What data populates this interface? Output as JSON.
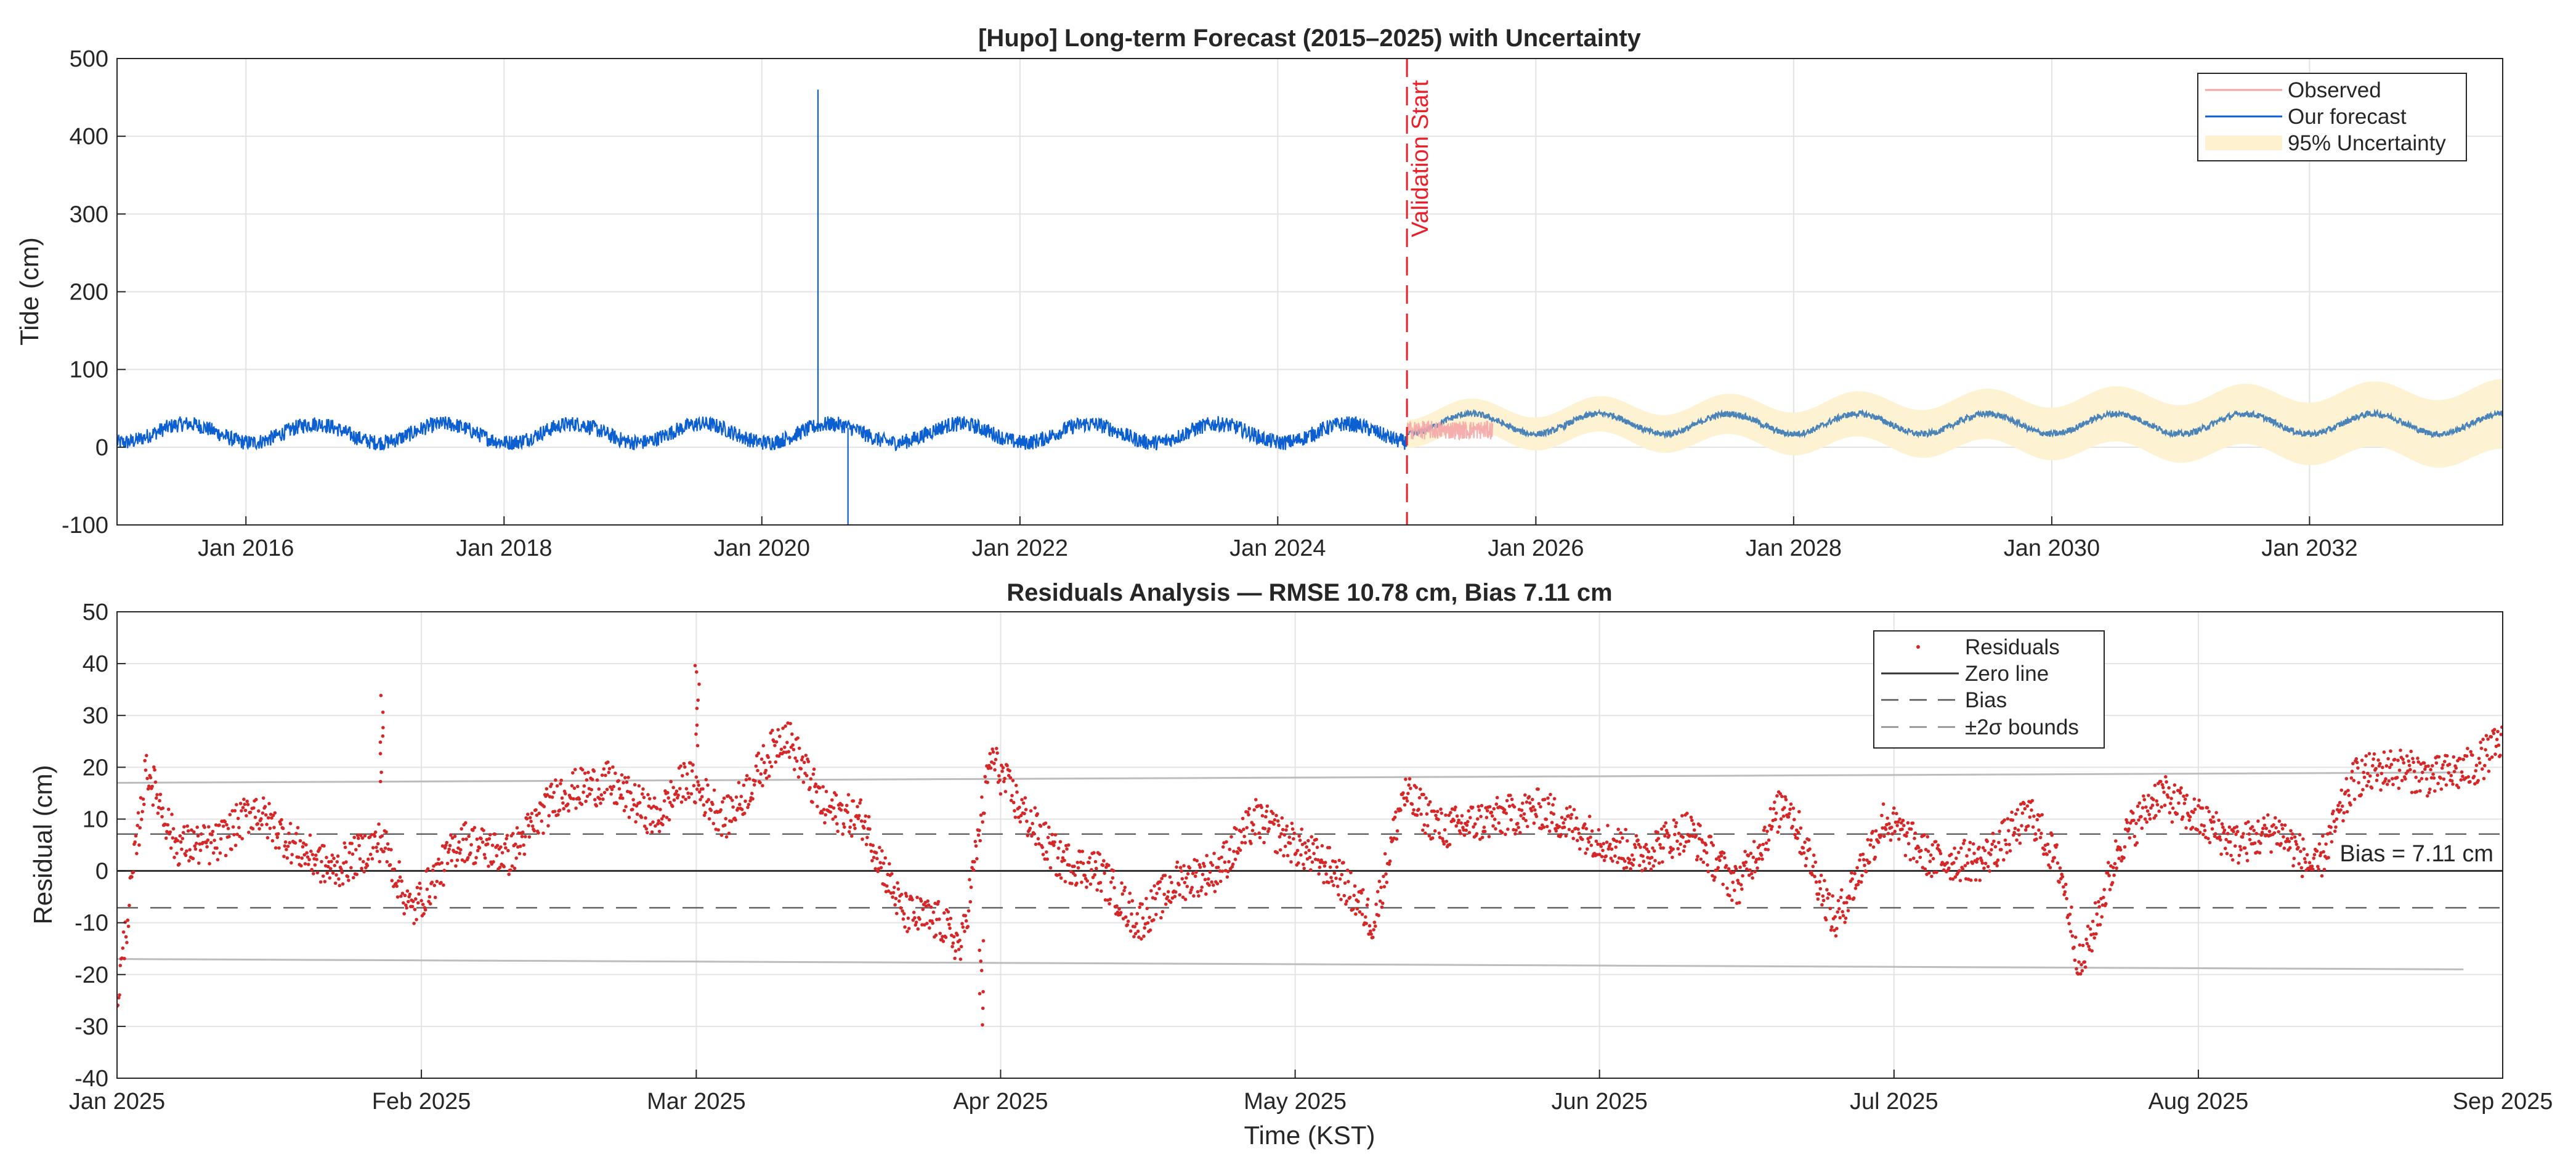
{
  "chart_data": [
    {
      "type": "line",
      "title": "[Hupo] Long-term Forecast (2015–2025) with Uncertainty",
      "xlabel": "",
      "ylabel": "Tide (cm)",
      "xlim": [
        "2015-01-01",
        "2033-07-01"
      ],
      "ylim": [
        -100,
        500
      ],
      "yticks": [
        -100,
        0,
        100,
        200,
        300,
        400,
        500
      ],
      "xticks": [
        {
          "date": "2016-01-01",
          "label": "Jan 2016"
        },
        {
          "date": "2018-01-01",
          "label": "Jan 2018"
        },
        {
          "date": "2020-01-01",
          "label": "Jan 2020"
        },
        {
          "date": "2022-01-01",
          "label": "Jan 2022"
        },
        {
          "date": "2024-01-01",
          "label": "Jan 2024"
        },
        {
          "date": "2026-01-01",
          "label": "Jan 2026"
        },
        {
          "date": "2028-01-01",
          "label": "Jan 2028"
        },
        {
          "date": "2030-01-01",
          "label": "Jan 2030"
        },
        {
          "date": "2032-01-01",
          "label": "Jan 2032"
        }
      ],
      "grid": true,
      "legend": {
        "location": "top-right",
        "entries": [
          "Observed",
          "Our forecast",
          "95% Uncertainty"
        ]
      },
      "series": [
        {
          "name": "Our forecast",
          "color": "#0b5fd0",
          "kind": "history",
          "x_range": [
            "2015-01-01",
            "2025-01-01"
          ],
          "mean": 18,
          "seasonal_amplitude": 12,
          "noise_amplitude": 10,
          "spikes": [
            {
              "date": "2020-06-08",
              "value": 460
            },
            {
              "date": "2020-09-01",
              "value": -100
            }
          ]
        },
        {
          "name": "Our forecast",
          "color": "#4a83b8",
          "kind": "forecast",
          "x_range": [
            "2025-01-01",
            "2033-07-01"
          ],
          "mean": 30,
          "seasonal_amplitude": 13,
          "period_years": 1
        },
        {
          "name": "Observed",
          "color": "#f4a6a6",
          "x_range": [
            "2025-01-01",
            "2025-09-01"
          ],
          "mean": 22,
          "noise_amplitude": 12
        },
        {
          "name": "95% Uncertainty",
          "color": "#fdf1cf",
          "kind": "band",
          "x_range": [
            "2025-01-01",
            "2033-07-01"
          ],
          "half_width_start": 18,
          "half_width_end": 45
        }
      ],
      "annotations": [
        {
          "type": "vline",
          "date": "2025-01-01",
          "label": "Validation Start",
          "color": "#e8202a"
        }
      ]
    },
    {
      "type": "scatter",
      "title": "Residuals Analysis — RMSE 10.78 cm, Bias 7.11 cm",
      "xlabel": "Time (KST)",
      "ylabel": "Residual (cm)",
      "xlim": [
        "2025-01-01",
        "2025-09-01"
      ],
      "ylim": [
        -40,
        50
      ],
      "yticks": [
        -40,
        -30,
        -20,
        -10,
        0,
        10,
        20,
        30,
        40,
        50
      ],
      "xticks": [
        {
          "date": "2025-01-01",
          "label": "Jan 2025"
        },
        {
          "date": "2025-02-01",
          "label": "Feb 2025"
        },
        {
          "date": "2025-03-01",
          "label": "Mar 2025"
        },
        {
          "date": "2025-04-01",
          "label": "Apr 2025"
        },
        {
          "date": "2025-05-01",
          "label": "May 2025"
        },
        {
          "date": "2025-06-01",
          "label": "Jun 2025"
        },
        {
          "date": "2025-07-01",
          "label": "Jul 2025"
        },
        {
          "date": "2025-08-01",
          "label": "Aug 2025"
        },
        {
          "date": "2025-09-01",
          "label": "Sep 2025"
        }
      ],
      "grid": true,
      "legend": {
        "location": "top-right",
        "entries": [
          "Residuals",
          "Zero line",
          "Bias",
          "±2σ  bounds"
        ]
      },
      "bias": 7.11,
      "rmse": 10.78,
      "bias_label": "Bias = 7.11 cm",
      "sigma_bounds": {
        "upper": [
          17,
          19
        ],
        "lower": [
          -17,
          -19
        ]
      },
      "residual_trend": {
        "days": [
          0,
          3,
          6,
          10,
          14,
          18,
          22,
          27,
          30,
          35,
          40,
          45,
          50,
          55,
          58,
          62,
          64,
          68,
          72,
          76,
          80,
          84,
          86,
          89,
          92,
          96,
          100,
          104,
          108,
          112,
          116,
          120,
          124,
          128,
          131,
          135,
          140,
          145,
          150,
          155,
          160,
          165,
          170,
          175,
          180,
          185,
          190,
          195,
          198,
          200,
          204,
          208,
          212,
          216,
          220,
          224,
          228,
          232,
          236,
          240,
          243
        ],
        "values": [
          -25,
          20,
          5,
          5,
          12,
          5,
          0,
          6,
          -8,
          6,
          3,
          15,
          17,
          10,
          18,
          10,
          15,
          27,
          12,
          10,
          -8,
          -10,
          -15,
          22,
          12,
          2,
          0,
          -10,
          -2,
          0,
          10,
          5,
          0,
          -10,
          15,
          8,
          10,
          12,
          7,
          3,
          8,
          -3,
          14,
          -10,
          10,
          2,
          2,
          11,
          0,
          -19,
          5,
          15,
          10,
          5,
          8,
          0,
          18,
          20,
          18,
          20,
          25
        ],
        "noise": 4,
        "spikes": [
          {
            "day": 27,
            "value": 33
          },
          {
            "day": 59,
            "value": 40
          },
          {
            "day": 88,
            "value": -29
          }
        ]
      }
    }
  ]
}
